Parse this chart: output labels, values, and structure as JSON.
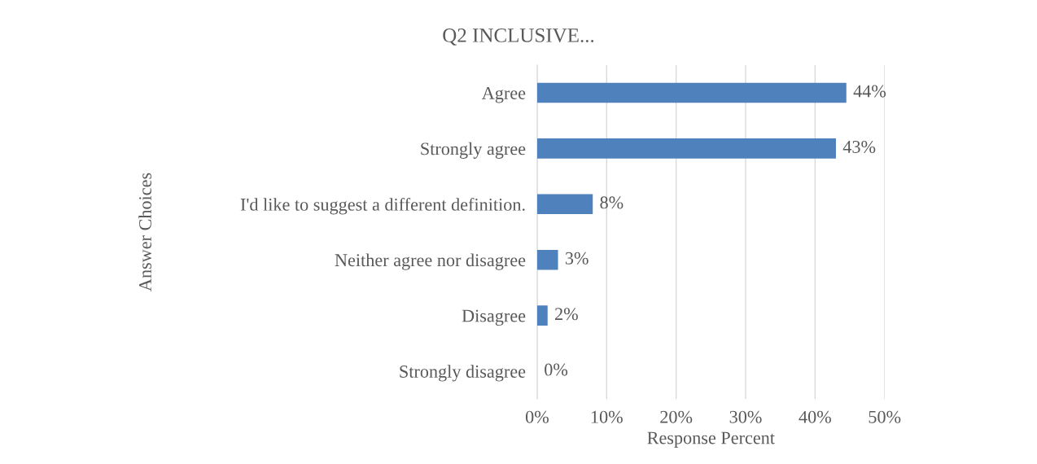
{
  "chart_data": {
    "type": "bar",
    "orientation": "horizontal",
    "title": "Q2 INCLUSIVE...",
    "xlabel": "Response Percent",
    "ylabel": "Answer Choices",
    "categories": [
      "Agree",
      "Strongly agree",
      "I'd like to suggest a different definition.",
      "Neither agree nor disagree",
      "Disagree",
      "Strongly disagree"
    ],
    "values": [
      44.5,
      43,
      8,
      3,
      1.5,
      0
    ],
    "value_labels": [
      "44%",
      "43%",
      "8%",
      "3%",
      "2%",
      "0%"
    ],
    "color": "#4f81bd",
    "xlim": [
      0,
      50
    ],
    "xticks": [
      {
        "value": 0,
        "label": "0%"
      },
      {
        "value": 10,
        "label": "10%"
      },
      {
        "value": 20,
        "label": "20%"
      },
      {
        "value": 30,
        "label": "30%"
      },
      {
        "value": 40,
        "label": "40%"
      },
      {
        "value": 50,
        "label": "50%"
      }
    ],
    "grid": "x",
    "legend": false
  }
}
